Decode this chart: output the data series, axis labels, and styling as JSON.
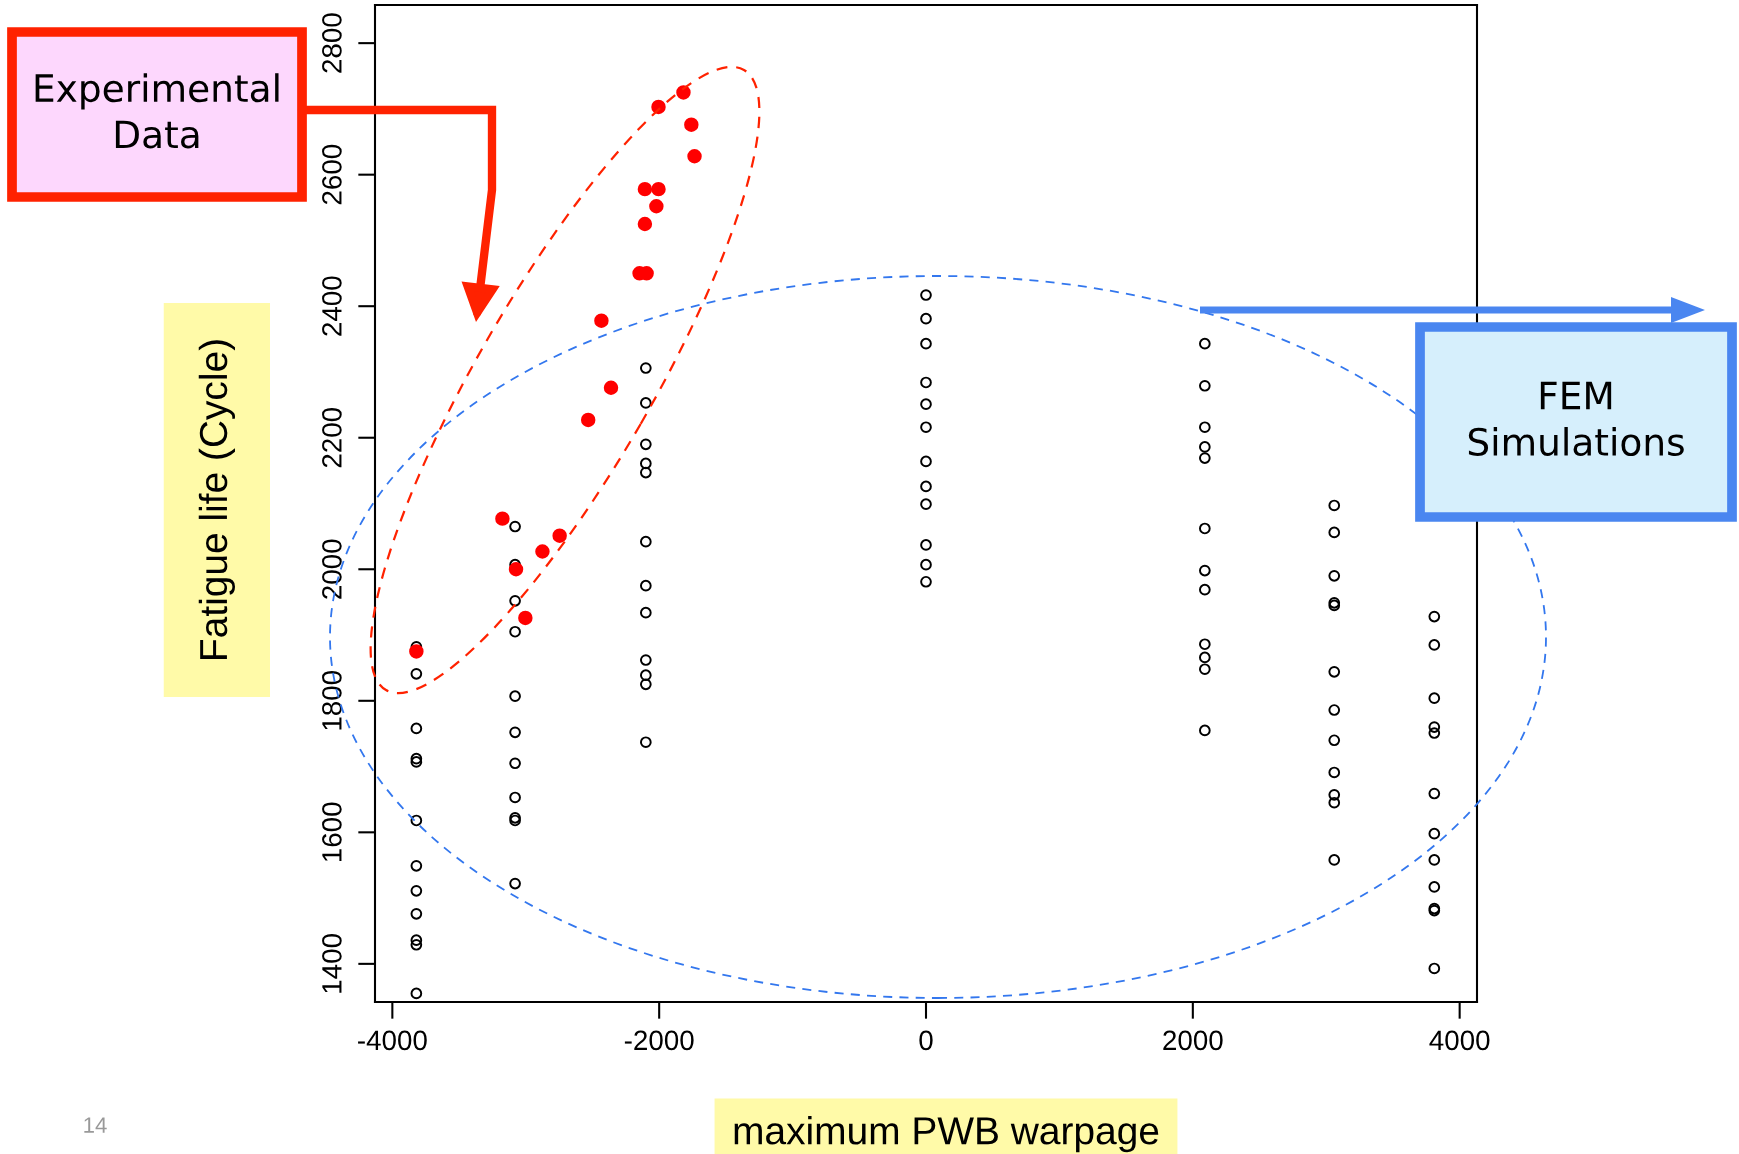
{
  "chart_data": {
    "type": "scatter",
    "xlabel": "maximum PWB warpage",
    "ylabel": "Fatigue life (Cycle)",
    "xlim": [
      -4130,
      4130
    ],
    "ylim": [
      1342,
      2858
    ],
    "xticks": [
      -4000,
      -2000,
      0,
      2000,
      4000
    ],
    "yticks": [
      1400,
      1600,
      1800,
      2000,
      2200,
      2400,
      2600,
      2800
    ],
    "grid": false,
    "legend": false,
    "marker": "circle",
    "series": [
      {
        "color": "#000000",
        "x": [
          -3820,
          -3820,
          -3820,
          -3820,
          -3820,
          -3820,
          -3820,
          -3820,
          -3820,
          -3820,
          -3820,
          -3820,
          -3080,
          -3080,
          -3080,
          -3080,
          -3080,
          -3080,
          -3080,
          -3080,
          -3080,
          -3080,
          -3080,
          -2100,
          -2100,
          -2100,
          -2100,
          -2100,
          -2100,
          -2100,
          -2100,
          -2100,
          -2100,
          -2100,
          -2100,
          0,
          0,
          0,
          0,
          0,
          0,
          0,
          0,
          0,
          0,
          0,
          0,
          2090,
          2090,
          2090,
          2090,
          2090,
          2090,
          2090,
          2090,
          2090,
          2090,
          2090,
          2090,
          3060,
          3060,
          3060,
          3060,
          3060,
          3060,
          3060,
          3060,
          3060,
          3060,
          3060,
          3060,
          3810,
          3810,
          3810,
          3810,
          3810,
          3810,
          3810,
          3810,
          3810,
          3810,
          3810,
          3810
        ],
        "values": [
          1882,
          1841,
          1758,
          1712,
          1707,
          1618,
          1549,
          1511,
          1476,
          1436,
          1429,
          1355,
          2065,
          2007,
          1952,
          1905,
          1807,
          1752,
          1705,
          1653,
          1622,
          1618,
          1522,
          2306,
          2253,
          2190,
          2161,
          2147,
          2042,
          1975,
          1934,
          1862,
          1839,
          1825,
          1737,
          2417,
          2381,
          2343,
          2284,
          2251,
          2216,
          2164,
          2126,
          2099,
          2037,
          2007,
          1981,
          2343,
          2279,
          2216,
          2186,
          2169,
          2062,
          1998,
          1969,
          1886,
          1866,
          1848,
          1755,
          2097,
          2056,
          1990,
          1949,
          1945,
          1844,
          1786,
          1740,
          1691,
          1657,
          1645,
          1558,
          1928,
          1885,
          1804,
          1760,
          1751,
          1659,
          1598,
          1558,
          1517,
          1484,
          1481,
          1393
        ]
      },
      {
        "color": "#ff0000",
        "x": [
          -1818,
          -2005,
          -1759,
          -1735,
          -2107,
          -2005,
          -2021,
          -2107,
          -2147,
          -2094,
          -2433,
          -2361,
          -2532,
          -3175,
          -2746,
          -2875,
          -3073,
          -3003,
          -3820
        ],
        "values": [
          2725,
          2703,
          2676,
          2628,
          2578,
          2578,
          2552,
          2525,
          2450,
          2450,
          2378,
          2276,
          2227,
          2077,
          2051,
          2027,
          2000,
          1926,
          1875
        ]
      }
    ],
    "annotations": [
      "Experimental\nData",
      "FEM\nSimulations",
      "14"
    ]
  }
}
